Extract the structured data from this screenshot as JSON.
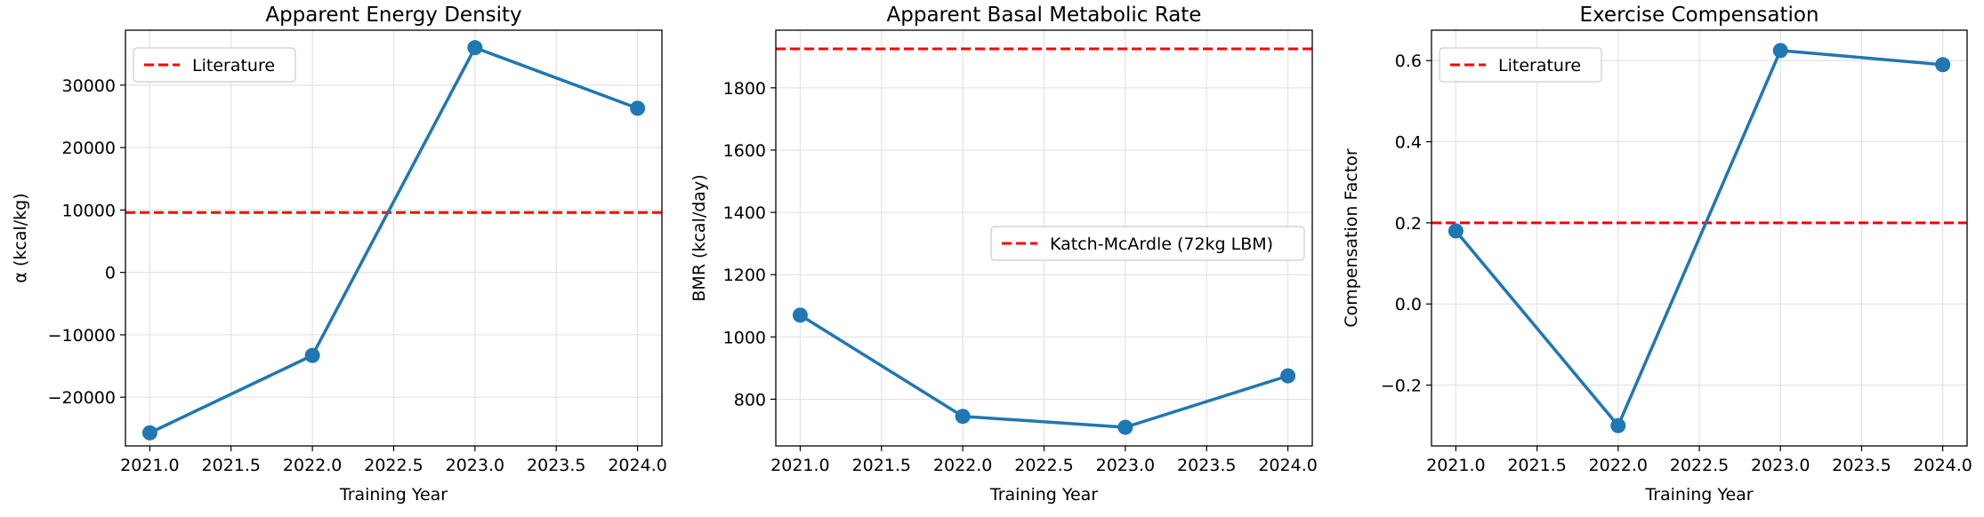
{
  "chart_data": [
    {
      "type": "line",
      "title": "Apparent Energy Density",
      "xlabel": "Training Year",
      "ylabel": "α (kcal/kg)",
      "xlim": [
        2020.85,
        2024.15
      ],
      "ylim": [
        -27800,
        38800
      ],
      "xticks": [
        2021.0,
        2021.5,
        2022.0,
        2022.5,
        2023.0,
        2023.5,
        2024.0
      ],
      "xtick_labels": [
        "2021.0",
        "2021.5",
        "2022.0",
        "2022.5",
        "2023.0",
        "2023.5",
        "2024.0"
      ],
      "yticks": [
        -20000,
        -10000,
        0,
        10000,
        20000,
        30000
      ],
      "ytick_labels": [
        "−20000",
        "−10000",
        "0",
        "10000",
        "20000",
        "30000"
      ],
      "grid": true,
      "series": [
        {
          "x": [
            2021,
            2022,
            2023,
            2024
          ],
          "y": [
            -25700,
            -13300,
            36000,
            26300
          ],
          "color": "#1f77b4",
          "marker": "circle"
        }
      ],
      "reference_lines": [
        {
          "y": 9600,
          "label": "Literature",
          "color": "#ff0000",
          "style": "dashed"
        }
      ],
      "legend": {
        "position": "top-left",
        "entries": [
          "Literature"
        ]
      }
    },
    {
      "type": "line",
      "title": "Apparent Basal Metabolic Rate",
      "xlabel": "Training Year",
      "ylabel": "BMR (kcal/day)",
      "xlim": [
        2020.85,
        2024.15
      ],
      "ylim": [
        650,
        1985
      ],
      "xticks": [
        2021.0,
        2021.5,
        2022.0,
        2022.5,
        2023.0,
        2023.5,
        2024.0
      ],
      "xtick_labels": [
        "2021.0",
        "2021.5",
        "2022.0",
        "2022.5",
        "2023.0",
        "2023.5",
        "2024.0"
      ],
      "yticks": [
        800,
        1000,
        1200,
        1400,
        1600,
        1800
      ],
      "ytick_labels": [
        "800",
        "1000",
        "1200",
        "1400",
        "1600",
        "1800"
      ],
      "grid": true,
      "series": [
        {
          "x": [
            2021,
            2022,
            2023,
            2024
          ],
          "y": [
            1070,
            745,
            710,
            875
          ],
          "color": "#1f77b4",
          "marker": "circle"
        }
      ],
      "reference_lines": [
        {
          "y": 1925,
          "label": "Katch-McArdle (72kg LBM)",
          "color": "#ff0000",
          "style": "dashed"
        }
      ],
      "legend": {
        "position": "center-right",
        "entries": [
          "Katch-McArdle (72kg LBM)"
        ]
      }
    },
    {
      "type": "line",
      "title": "Exercise Compensation",
      "xlabel": "Training Year",
      "ylabel": "Compensation Factor",
      "xlim": [
        2020.85,
        2024.15
      ],
      "ylim": [
        -0.35,
        0.675
      ],
      "xticks": [
        2021.0,
        2021.5,
        2022.0,
        2022.5,
        2023.0,
        2023.5,
        2024.0
      ],
      "xtick_labels": [
        "2021.0",
        "2021.5",
        "2022.0",
        "2022.5",
        "2023.0",
        "2023.5",
        "2024.0"
      ],
      "yticks": [
        -0.2,
        0.0,
        0.2,
        0.4,
        0.6
      ],
      "ytick_labels": [
        "−0.2",
        "0.0",
        "0.2",
        "0.4",
        "0.6"
      ],
      "grid": true,
      "series": [
        {
          "x": [
            2021,
            2022,
            2023,
            2024
          ],
          "y": [
            0.18,
            -0.3,
            0.625,
            0.59
          ],
          "color": "#1f77b4",
          "marker": "circle"
        }
      ],
      "reference_lines": [
        {
          "y": 0.2,
          "label": "Literature",
          "color": "#ff0000",
          "style": "dashed"
        }
      ],
      "legend": {
        "position": "top-left",
        "entries": [
          "Literature"
        ]
      }
    }
  ]
}
